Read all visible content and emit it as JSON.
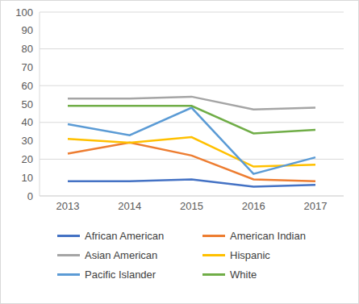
{
  "chart_data": {
    "type": "line",
    "categories": [
      "2013",
      "2014",
      "2015",
      "2016",
      "2017"
    ],
    "series": [
      {
        "name": "African American",
        "color": "#4472c4",
        "values": [
          8,
          8,
          9,
          5,
          6
        ]
      },
      {
        "name": "American Indian",
        "color": "#ed7d31",
        "values": [
          23,
          29,
          22,
          9,
          8
        ]
      },
      {
        "name": "Asian American",
        "color": "#a5a5a5",
        "values": [
          53,
          53,
          54,
          47,
          48
        ]
      },
      {
        "name": "Hispanic",
        "color": "#ffc000",
        "values": [
          31,
          29,
          32,
          16,
          17
        ]
      },
      {
        "name": "Pacific Islander",
        "color": "#5b9bd5",
        "values": [
          39,
          33,
          48,
          12,
          21
        ]
      },
      {
        "name": "White",
        "color": "#70ad47",
        "values": [
          49,
          49,
          49,
          34,
          36
        ]
      }
    ],
    "ylim": [
      0,
      100
    ],
    "yticks": [
      0,
      10,
      20,
      30,
      40,
      50,
      60,
      70,
      80,
      90,
      100
    ],
    "grid": true,
    "legend": "bottom"
  }
}
